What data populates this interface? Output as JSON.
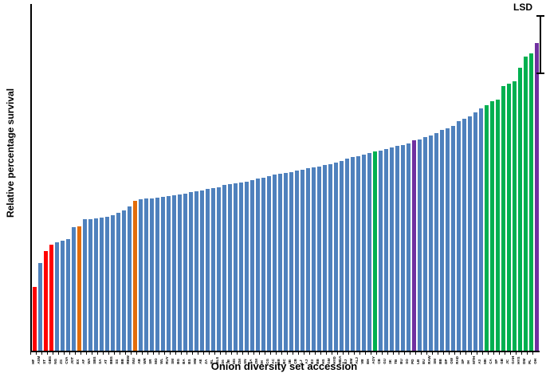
{
  "chart_data": {
    "type": "bar",
    "title": "",
    "xlabel": "Onion diversity set accession",
    "ylabel": "Relative percentage survival",
    "ylim": [
      0,
      100
    ],
    "yticks": [
      0,
      10,
      20,
      30,
      40,
      50,
      60,
      70,
      80,
      90,
      100
    ],
    "grid": false,
    "legend": false,
    "color_map": {
      "blue": "#4F81BD",
      "red": "#FF0000",
      "orange": "#E36C09",
      "green": "#00B050",
      "purple": "#7030A0"
    },
    "lsd": {
      "label": "LSD",
      "from": 80.0,
      "to": 96.5
    },
    "bars": [
      {
        "label": "HF",
        "value": 18.3,
        "color": "red"
      },
      {
        "label": "ASM",
        "value": 25.4,
        "color": "blue"
      },
      {
        "label": "ST",
        "value": 28.7,
        "color": "red"
      },
      {
        "label": "GBS",
        "value": 30.6,
        "color": "red"
      },
      {
        "label": "NG",
        "value": 31.2,
        "color": "blue"
      },
      {
        "label": "ZS",
        "value": 31.7,
        "color": "blue"
      },
      {
        "label": "CVA",
        "value": 32.3,
        "color": "blue"
      },
      {
        "label": "JOT",
        "value": 35.6,
        "color": "blue"
      },
      {
        "label": "EX",
        "value": 35.9,
        "color": "orange"
      },
      {
        "label": "AF",
        "value": 37.9,
        "color": "blue"
      },
      {
        "label": "WA",
        "value": 38.0,
        "color": "blue"
      },
      {
        "label": "SBS",
        "value": 38.2,
        "color": "blue"
      },
      {
        "label": "SA",
        "value": 38.4,
        "color": "blue"
      },
      {
        "label": "AT",
        "value": 38.7,
        "color": "blue"
      },
      {
        "label": "BBS",
        "value": 39.1,
        "color": "blue"
      },
      {
        "label": "SS",
        "value": 39.8,
        "color": "blue"
      },
      {
        "label": "BB",
        "value": 40.4,
        "color": "blue"
      },
      {
        "label": "RBW",
        "value": 41.7,
        "color": "blue"
      },
      {
        "label": "INU",
        "value": 43.3,
        "color": "orange"
      },
      {
        "label": "AB",
        "value": 43.6,
        "color": "blue"
      },
      {
        "label": "WR",
        "value": 43.8,
        "color": "blue"
      },
      {
        "label": "SR",
        "value": 44.0,
        "color": "blue"
      },
      {
        "label": "MO",
        "value": 44.1,
        "color": "blue"
      },
      {
        "label": "WL",
        "value": 44.3,
        "color": "blue"
      },
      {
        "label": "RUY",
        "value": 44.5,
        "color": "blue"
      },
      {
        "label": "SM",
        "value": 44.8,
        "color": "blue"
      },
      {
        "label": "BG",
        "value": 45.1,
        "color": "blue"
      },
      {
        "label": "BA",
        "value": 45.4,
        "color": "blue"
      },
      {
        "label": "BS",
        "value": 45.7,
        "color": "blue"
      },
      {
        "label": "HM",
        "value": 46.0,
        "color": "blue"
      },
      {
        "label": "AE",
        "value": 46.3,
        "color": "blue"
      },
      {
        "label": "ZA",
        "value": 46.6,
        "color": "blue"
      },
      {
        "label": "RL",
        "value": 46.9,
        "color": "blue"
      },
      {
        "label": "BLS",
        "value": 47.2,
        "color": "blue"
      },
      {
        "label": "S6",
        "value": 47.8,
        "color": "blue"
      },
      {
        "label": "JB",
        "value": 48.0,
        "color": "blue"
      },
      {
        "label": "MS",
        "value": 48.2,
        "color": "blue"
      },
      {
        "label": "ZM",
        "value": 48.5,
        "color": "blue"
      },
      {
        "label": "SN",
        "value": 48.8,
        "color": "blue"
      },
      {
        "label": "SA",
        "value": 49.2,
        "color": "blue"
      },
      {
        "label": "ZM",
        "value": 49.6,
        "color": "blue"
      },
      {
        "label": "IH",
        "value": 50.0,
        "color": "blue"
      },
      {
        "label": "CG",
        "value": 50.4,
        "color": "blue"
      },
      {
        "label": "AC",
        "value": 50.7,
        "color": "blue"
      },
      {
        "label": "BB",
        "value": 51.0,
        "color": "blue"
      },
      {
        "label": "BC",
        "value": 51.3,
        "color": "blue"
      },
      {
        "label": "3B",
        "value": 51.6,
        "color": "blue"
      },
      {
        "label": "CB",
        "value": 51.9,
        "color": "blue"
      },
      {
        "label": "LJ",
        "value": 52.2,
        "color": "blue"
      },
      {
        "label": "AJ",
        "value": 52.6,
        "color": "blue"
      },
      {
        "label": "B3",
        "value": 52.9,
        "color": "blue"
      },
      {
        "label": "BB",
        "value": 53.2,
        "color": "blue"
      },
      {
        "label": "HS",
        "value": 53.5,
        "color": "blue"
      },
      {
        "label": "GM",
        "value": 53.9,
        "color": "blue"
      },
      {
        "label": "HYD",
        "value": 54.3,
        "color": "blue"
      },
      {
        "label": "MDA",
        "value": 54.8,
        "color": "blue"
      },
      {
        "label": "BJ",
        "value": 55.3,
        "color": "blue"
      },
      {
        "label": "BM",
        "value": 55.8,
        "color": "blue"
      },
      {
        "label": "ALJ",
        "value": 56.2,
        "color": "blue"
      },
      {
        "label": "VB",
        "value": 56.6,
        "color": "blue"
      },
      {
        "label": "EH",
        "value": 57.0,
        "color": "blue"
      },
      {
        "label": "AOY",
        "value": 57.4,
        "color": "green"
      },
      {
        "label": "CB",
        "value": 57.8,
        "color": "blue"
      },
      {
        "label": "GU",
        "value": 58.2,
        "color": "blue"
      },
      {
        "label": "3K",
        "value": 58.6,
        "color": "blue"
      },
      {
        "label": "TB",
        "value": 59.0,
        "color": "blue"
      },
      {
        "label": "BU",
        "value": 59.4,
        "color": "blue"
      },
      {
        "label": "SO",
        "value": 59.8,
        "color": "blue"
      },
      {
        "label": "PD",
        "value": 60.6,
        "color": "purple"
      },
      {
        "label": "LB",
        "value": 61.0,
        "color": "blue"
      },
      {
        "label": "EU",
        "value": 61.5,
        "color": "blue"
      },
      {
        "label": "RAW",
        "value": 62.1,
        "color": "blue"
      },
      {
        "label": "SM",
        "value": 62.8,
        "color": "blue"
      },
      {
        "label": "BB",
        "value": 63.6,
        "color": "blue"
      },
      {
        "label": "DP",
        "value": 64.2,
        "color": "blue"
      },
      {
        "label": "OW",
        "value": 64.8,
        "color": "blue"
      },
      {
        "label": "RAD",
        "value": 66.3,
        "color": "blue"
      },
      {
        "label": "SP",
        "value": 67.0,
        "color": "blue"
      },
      {
        "label": "IH",
        "value": 67.6,
        "color": "blue"
      },
      {
        "label": "MTH",
        "value": 68.7,
        "color": "blue"
      },
      {
        "label": "A3",
        "value": 70.0,
        "color": "blue"
      },
      {
        "label": "MK",
        "value": 70.9,
        "color": "green"
      },
      {
        "label": "CA",
        "value": 72.0,
        "color": "green"
      },
      {
        "label": "SP",
        "value": 72.4,
        "color": "green"
      },
      {
        "label": "GB",
        "value": 76.4,
        "color": "green"
      },
      {
        "label": "JC",
        "value": 77.1,
        "color": "green"
      },
      {
        "label": "GAH",
        "value": 77.7,
        "color": "green"
      },
      {
        "label": "HYS",
        "value": 81.5,
        "color": "green"
      },
      {
        "label": "DM",
        "value": 84.9,
        "color": "green"
      },
      {
        "label": "PL",
        "value": 85.8,
        "color": "green"
      },
      {
        "label": "OH",
        "value": 88.8,
        "color": "purple"
      }
    ]
  }
}
